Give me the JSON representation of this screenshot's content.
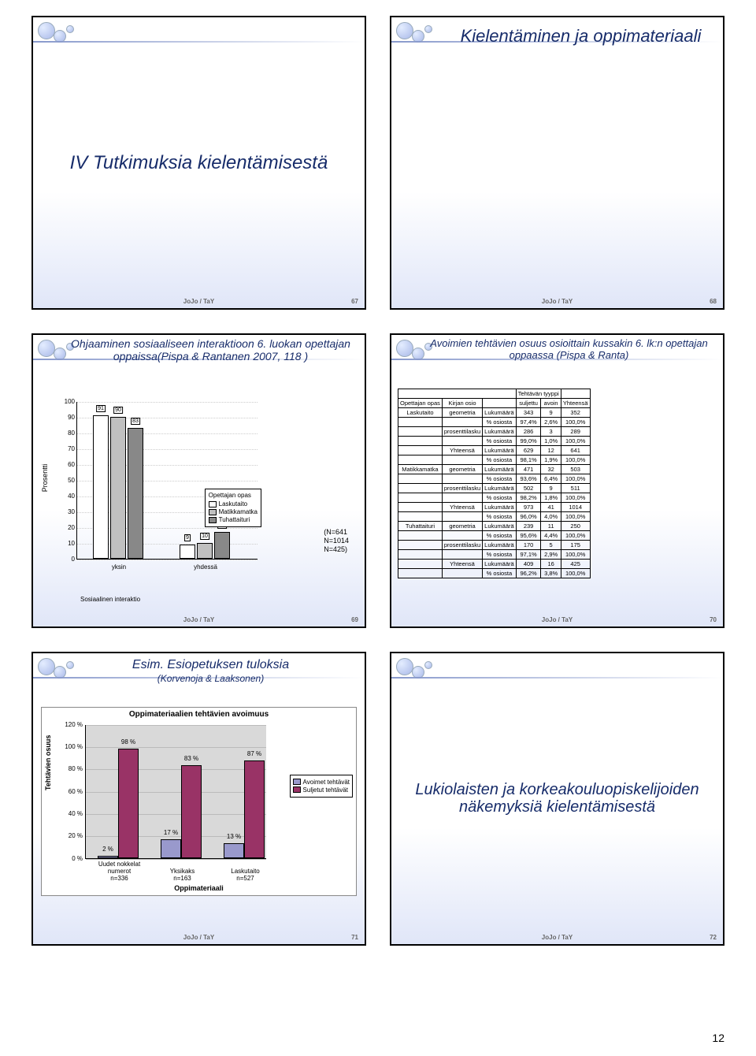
{
  "page_number": "12",
  "slides": [
    {
      "footer": "JoJo / TaY",
      "num": "67",
      "title_center": "IV Tutkimuksia kielentämisestä"
    },
    {
      "footer": "JoJo / TaY",
      "num": "68",
      "title": "Kielentäminen ja oppimateriaali"
    },
    {
      "footer": "JoJo / TaY",
      "num": "69",
      "title": "Ohjaaminen sosiaaliseen interaktioon 6. luokan opettajan oppaissa(Pispa & Rantanen 2007, 118 )",
      "chart": {
        "type": "bar",
        "ylabel": "Prosentti",
        "ymax": 100,
        "ystep": 10,
        "groups": [
          "yksin",
          "yhdessä"
        ],
        "series": [
          {
            "name": "Laskutaito",
            "color": "#ffffff"
          },
          {
            "name": "Matikkamatka",
            "color": "#c0c0c0"
          },
          {
            "name": "Tuhattaituri",
            "color": "#888888"
          }
        ],
        "values": {
          "yksin": [
            91,
            90,
            83
          ],
          "yhdessä": [
            9,
            10,
            17
          ]
        },
        "legend_title": "Opettajan opas",
        "x_axis_title": "Sosiaalinen interaktio",
        "n_labels": [
          "(N=641",
          "N=1014",
          "N=425)"
        ]
      }
    },
    {
      "footer": "JoJo / TaY",
      "num": "70",
      "title": "Avoimien tehtävien osuus osioittain kussakin 6. lk:n opettajan oppaassa (Pispa & Ranta)",
      "table": {
        "header_top": "Tehtävän tyyppi",
        "cols": [
          "Opettajan opas",
          "Kirjan osio",
          "",
          "suljettu",
          "avoin",
          "Yhteensä"
        ],
        "rows": [
          [
            "Laskutaito",
            "geometria",
            "Lukumäärä",
            "343",
            "9",
            "352"
          ],
          [
            "",
            "",
            "% osiosta",
            "97,4%",
            "2,6%",
            "100,0%"
          ],
          [
            "",
            "prosenttilasku",
            "Lukumäärä",
            "286",
            "3",
            "289"
          ],
          [
            "",
            "",
            "% osiosta",
            "99,0%",
            "1,0%",
            "100,0%"
          ],
          [
            "",
            "Yhteensä",
            "Lukumäärä",
            "629",
            "12",
            "641"
          ],
          [
            "",
            "",
            "% osiosta",
            "98,1%",
            "1,9%",
            "100,0%"
          ],
          [
            "Matikkamatka",
            "geometria",
            "Lukumäärä",
            "471",
            "32",
            "503"
          ],
          [
            "",
            "",
            "% osiosta",
            "93,6%",
            "6,4%",
            "100,0%"
          ],
          [
            "",
            "prosenttilasku",
            "Lukumäärä",
            "502",
            "9",
            "511"
          ],
          [
            "",
            "",
            "% osiosta",
            "98,2%",
            "1,8%",
            "100,0%"
          ],
          [
            "",
            "Yhteensä",
            "Lukumäärä",
            "973",
            "41",
            "1014"
          ],
          [
            "",
            "",
            "% osiosta",
            "96,0%",
            "4,0%",
            "100,0%"
          ],
          [
            "Tuhattaituri",
            "geometria",
            "Lukumäärä",
            "239",
            "11",
            "250"
          ],
          [
            "",
            "",
            "% osiosta",
            "95,6%",
            "4,4%",
            "100,0%"
          ],
          [
            "",
            "prosenttilasku",
            "Lukumäärä",
            "170",
            "5",
            "175"
          ],
          [
            "",
            "",
            "% osiosta",
            "97,1%",
            "2,9%",
            "100,0%"
          ],
          [
            "",
            "Yhteensä",
            "Lukumäärä",
            "409",
            "16",
            "425"
          ],
          [
            "",
            "",
            "% osiosta",
            "96,2%",
            "3,8%",
            "100,0%"
          ]
        ]
      }
    },
    {
      "footer": "JoJo / TaY",
      "num": "71",
      "title": "Esim. Esiopetuksen tuloksia",
      "subtitle": "(Korvenoja & Laaksonen)",
      "esichart": {
        "title": "Oppimateriaalien tehtävien avoimuus",
        "ylabel": "Tehtävien osuus",
        "ymax": 120,
        "ystep": 20,
        "ysuffix": " %",
        "series": [
          {
            "name": "Avoimet tehtävät",
            "color": "#9999cc"
          },
          {
            "name": "Suljetut tehtävät",
            "color": "#993366"
          }
        ],
        "groups": [
          {
            "label": "Uudet nokkelat numerot",
            "n": "n=336",
            "vals": [
              2,
              98
            ]
          },
          {
            "label": "Yksikaks",
            "n": "n=163",
            "vals": [
              17,
              83
            ]
          },
          {
            "label": "Laskutaito",
            "n": "n=527",
            "vals": [
              13,
              87
            ]
          }
        ],
        "x_axis_title": "Oppimateriaali"
      }
    },
    {
      "footer": "JoJo / TaY",
      "num": "72",
      "title_center": "Lukiolaisten ja korkeakouluopiskelijoiden näkemyksiä kielentämisestä"
    }
  ]
}
